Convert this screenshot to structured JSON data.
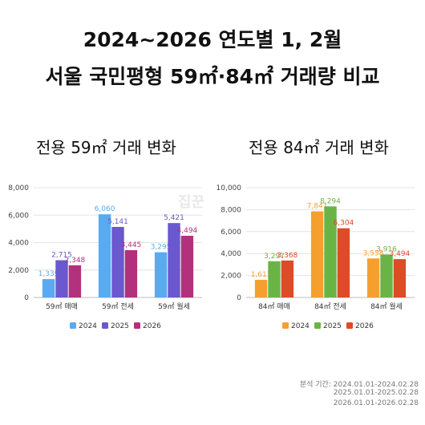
{
  "title_line1": "2024~2026 연도별 1, 2월",
  "title_line2": "서울 국민평형 59㎡·84㎡ 거래량 비교",
  "watermark": "집꾼",
  "footnote": {
    "label": "분석 기간: 2024.01.01-2024.02.28",
    "line2": "2025.01.01-2025.02.28",
    "line3": "2026.01.01-2026.02.28"
  },
  "chart_data": [
    {
      "type": "bar",
      "title": "전용 59㎡ 거래 변화",
      "categories": [
        "59㎡ 매매",
        "59㎡ 전세",
        "59㎡ 월세"
      ],
      "series": [
        {
          "name": "2024",
          "color": "#5aaaf0",
          "values": [
            1339,
            6060,
            3295
          ]
        },
        {
          "name": "2025",
          "color": "#6a58cf",
          "values": [
            2715,
            5141,
            5421
          ]
        },
        {
          "name": "2026",
          "color": "#b3307d",
          "values": [
            2348,
            3445,
            4494
          ]
        }
      ],
      "ylim": [
        0,
        8000
      ],
      "yticks": [
        0,
        2000,
        4000,
        6000,
        8000
      ],
      "grid": true,
      "legend": "bottom"
    },
    {
      "type": "bar",
      "title": "전용 84㎡ 거래 변화",
      "categories": [
        "84㎡ 매매",
        "84㎡ 전세",
        "84㎡ 월세"
      ],
      "series": [
        {
          "name": "2024",
          "color": "#f5a02e",
          "values": [
            1613,
            7841,
            3558
          ]
        },
        {
          "name": "2025",
          "color": "#6ab446",
          "values": [
            3297,
            8294,
            3916
          ]
        },
        {
          "name": "2026",
          "color": "#dd4b27",
          "values": [
            3368,
            6304,
            3494
          ]
        }
      ],
      "ylim": [
        0,
        10000
      ],
      "yticks": [
        0,
        2000,
        4000,
        6000,
        8000,
        10000
      ],
      "grid": true,
      "legend": "bottom"
    }
  ]
}
